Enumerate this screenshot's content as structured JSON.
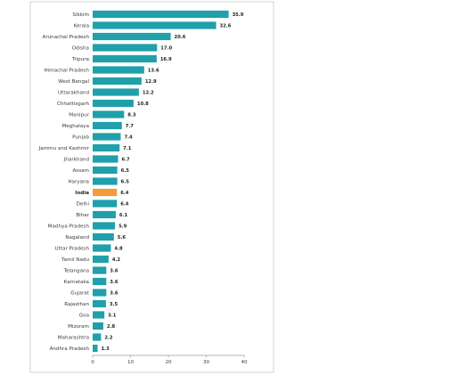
{
  "chart_data": {
    "type": "bar",
    "orientation": "horizontal",
    "title": "",
    "xlabel": "",
    "ylabel": "",
    "xlim": [
      0,
      40
    ],
    "xticks": [
      0,
      10,
      20,
      30,
      40
    ],
    "grid": false,
    "legend": "none",
    "colors": {
      "bar": "#1fa0aa",
      "highlight": "#f39c3a",
      "frame": "#c8c8c8",
      "axis": "#9a9a9a"
    },
    "highlight_category": "India",
    "categories": [
      "Sikkim",
      "Kerala",
      "Arunachal Pradesh",
      "Odisha",
      "Tripura",
      "Himachal Pradesh",
      "West Bengal",
      "Uttarakhand",
      "Chhattisgarh",
      "Manipur",
      "Meghalaya",
      "Punjab",
      "Jammu and Kashmir",
      "Jharkhand",
      "Assam",
      "Haryana",
      "India",
      "Delhi",
      "Bihar",
      "Madhya Pradesh",
      "Nagaland",
      "Uttar Pradesh",
      "Tamil Nadu",
      "Telangana",
      "Karnataka",
      "Gujarat",
      "Rajasthan",
      "Goa",
      "Mizoram",
      "Maharashtra",
      "Andhra Pradesh"
    ],
    "values": [
      35.9,
      32.6,
      20.6,
      17.0,
      16.9,
      13.6,
      12.9,
      12.2,
      10.8,
      8.3,
      7.7,
      7.4,
      7.1,
      6.7,
      6.5,
      6.5,
      6.4,
      6.4,
      6.1,
      5.9,
      5.6,
      4.8,
      4.2,
      3.6,
      3.6,
      3.6,
      3.5,
      3.1,
      2.8,
      2.2,
      1.3
    ],
    "value_labels": [
      "35.9",
      "32.6",
      "20.6",
      "17.0",
      "16.9",
      "13.6",
      "12.9",
      "12.2",
      "10.8",
      "8.3",
      "7.7",
      "7.4",
      "7.1",
      "6.7",
      "6.5",
      "6.5",
      "6.4",
      "6.4",
      "6.1",
      "5.9",
      "5.6",
      "4.8",
      "4.2",
      "3.6",
      "3.6",
      "3.6",
      "3.5",
      "3.1",
      "2.8",
      "2.2",
      "1.3"
    ]
  }
}
